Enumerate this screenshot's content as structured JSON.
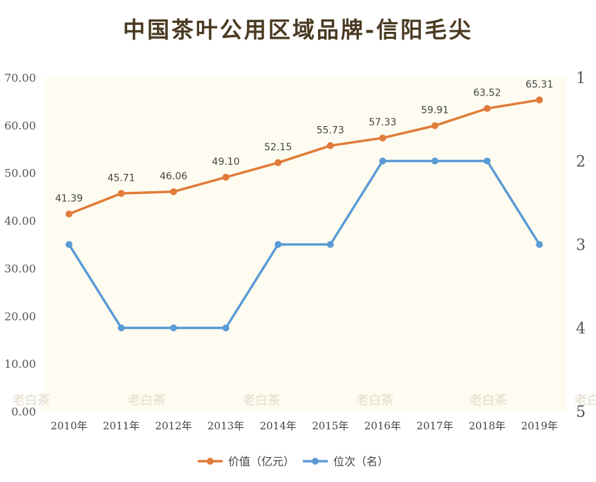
{
  "chart_data": {
    "type": "line",
    "title": "中国茶叶公用区域品牌-信阳毛尖",
    "categories": [
      "2010年",
      "2011年",
      "2012年",
      "2013年",
      "2014年",
      "2015年",
      "2016年",
      "2017年",
      "2018年",
      "2019年"
    ],
    "series": [
      {
        "name": "价值（亿元）",
        "axis": "left",
        "color": "#e07b39",
        "values": [
          41.39,
          45.71,
          46.06,
          49.1,
          52.15,
          55.73,
          57.33,
          59.91,
          63.52,
          65.31
        ],
        "labels": [
          "41.39",
          "45.71",
          "46.06",
          "49.10",
          "52.15",
          "55.73",
          "57.33",
          "59.91",
          "63.52",
          "65.31"
        ]
      },
      {
        "name": "位次（名）",
        "axis": "right",
        "color": "#5b9bd5",
        "values": [
          3,
          4,
          4,
          4,
          3,
          3,
          2,
          2,
          2,
          3
        ]
      }
    ],
    "y_left": {
      "min": 0,
      "max": 70,
      "ticks": [
        "0.00",
        "10.00",
        "20.00",
        "30.00",
        "40.00",
        "50.00",
        "60.00",
        "70.00"
      ]
    },
    "y_right": {
      "min": 1,
      "max": 5,
      "inverted": true,
      "ticks": [
        "1",
        "2",
        "3",
        "4",
        "5"
      ]
    },
    "legend_position": "bottom-center",
    "grid": false
  },
  "watermark": {
    "text": "老白茶"
  }
}
